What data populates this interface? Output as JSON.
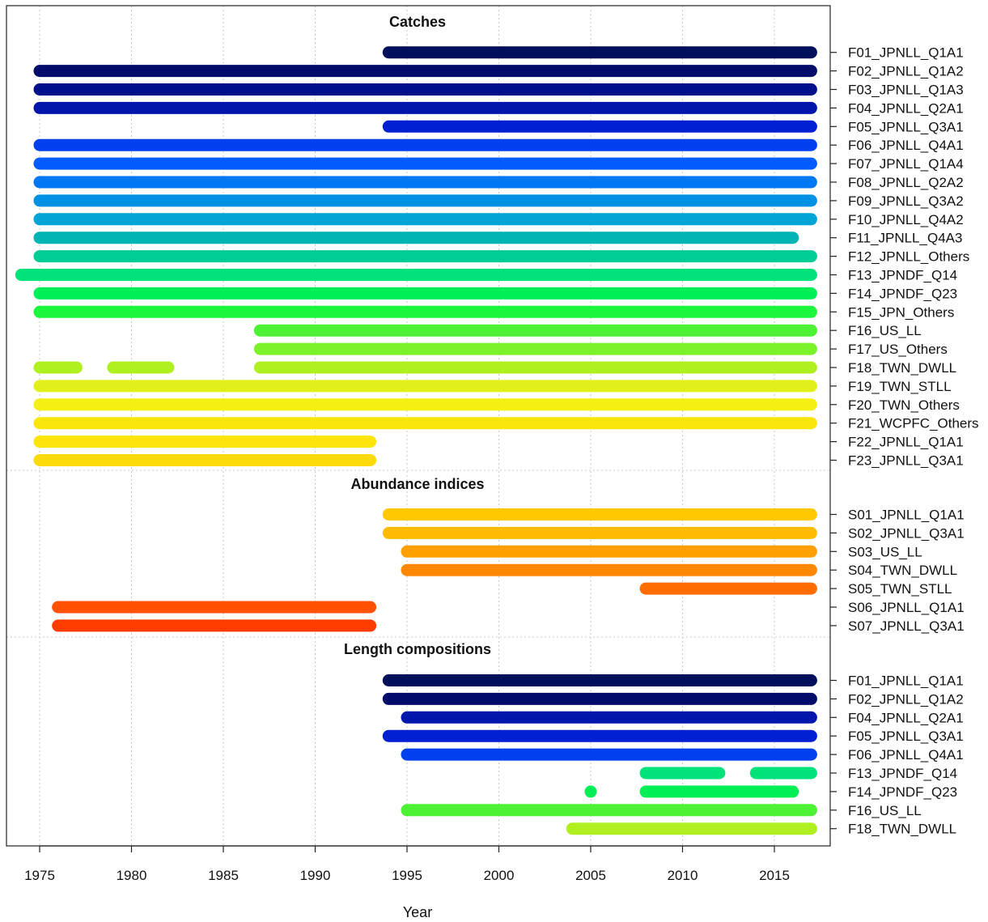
{
  "chart_data": {
    "type": "timeline",
    "xlabel": "Year",
    "x_ticks": [
      1975,
      1980,
      1985,
      1990,
      1995,
      2000,
      2005,
      2010,
      2015
    ],
    "xlim": [
      1973.2,
      2017.8
    ],
    "grid": true,
    "sections": [
      {
        "title": "Catches",
        "rows": [
          {
            "label": "F01_JPNLL_Q1A1",
            "color": "#000f5c",
            "segments": [
              [
                1994,
                2017
              ]
            ]
          },
          {
            "label": "F02_JPNLL_Q1A2",
            "color": "#000b6a",
            "segments": [
              [
                1975,
                2017
              ]
            ]
          },
          {
            "label": "F03_JPNLL_Q1A3",
            "color": "#00108a",
            "segments": [
              [
                1975,
                2017
              ]
            ]
          },
          {
            "label": "F04_JPNLL_Q2A1",
            "color": "#0016ad",
            "segments": [
              [
                1975,
                2017
              ]
            ]
          },
          {
            "label": "F05_JPNLL_Q3A1",
            "color": "#001fd2",
            "segments": [
              [
                1994,
                2017
              ]
            ]
          },
          {
            "label": "F06_JPNLL_Q4A1",
            "color": "#0040ef",
            "segments": [
              [
                1975,
                2017
              ]
            ]
          },
          {
            "label": "F07_JPNLL_Q1A4",
            "color": "#005cff",
            "segments": [
              [
                1975,
                2017
              ]
            ]
          },
          {
            "label": "F08_JPNLL_Q2A2",
            "color": "#0077f3",
            "segments": [
              [
                1975,
                2017
              ]
            ]
          },
          {
            "label": "F09_JPNLL_Q3A2",
            "color": "#0091e5",
            "segments": [
              [
                1975,
                2017
              ]
            ]
          },
          {
            "label": "F10_JPNLL_Q4A2",
            "color": "#00a5d6",
            "segments": [
              [
                1975,
                2017
              ]
            ]
          },
          {
            "label": "F11_JPNLL_Q4A3",
            "color": "#00b4b4",
            "segments": [
              [
                1975,
                2016
              ]
            ]
          },
          {
            "label": "F12_JPNLL_Others",
            "color": "#00cc96",
            "segments": [
              [
                1975,
                2017
              ]
            ]
          },
          {
            "label": "F13_JPNDF_Q14",
            "color": "#00e27a",
            "segments": [
              [
                1974,
                2017
              ]
            ]
          },
          {
            "label": "F14_JPNDF_Q23",
            "color": "#00ef56",
            "segments": [
              [
                1975,
                2017
              ]
            ]
          },
          {
            "label": "F15_JPN_Others",
            "color": "#1af73c",
            "segments": [
              [
                1975,
                2017
              ]
            ]
          },
          {
            "label": "F16_US_LL",
            "color": "#4cf233",
            "segments": [
              [
                1987,
                2017
              ]
            ]
          },
          {
            "label": "F17_US_Others",
            "color": "#7cf22a",
            "segments": [
              [
                1987,
                2017
              ]
            ]
          },
          {
            "label": "F18_TWN_DWLL",
            "color": "#b0f020",
            "segments": [
              [
                1975,
                1977
              ],
              [
                1979,
                1982
              ],
              [
                1987,
                2017
              ]
            ]
          },
          {
            "label": "F19_TWN_STLL",
            "color": "#e2f01a",
            "segments": [
              [
                1975,
                2017
              ]
            ]
          },
          {
            "label": "F20_TWN_Others",
            "color": "#f5f012",
            "segments": [
              [
                1975,
                2017
              ]
            ]
          },
          {
            "label": "F21_WCPFC_Others",
            "color": "#fbe60c",
            "segments": [
              [
                1975,
                2017
              ]
            ]
          },
          {
            "label": "F22_JPNLL_Q1A1",
            "color": "#fde40a",
            "segments": [
              [
                1975,
                1993
              ]
            ]
          },
          {
            "label": "F23_JPNLL_Q3A1",
            "color": "#fdda0a",
            "segments": [
              [
                1975,
                1993
              ]
            ]
          }
        ]
      },
      {
        "title": "Abundance indices",
        "rows": [
          {
            "label": "S01_JPNLL_Q1A1",
            "color": "#ffc800",
            "segments": [
              [
                1994,
                2017
              ]
            ]
          },
          {
            "label": "S02_JPNLL_Q3A1",
            "color": "#ffbb00",
            "segments": [
              [
                1994,
                2017
              ]
            ]
          },
          {
            "label": "S03_US_LL",
            "color": "#ffa000",
            "segments": [
              [
                1995,
                2017
              ]
            ]
          },
          {
            "label": "S04_TWN_DWLL",
            "color": "#ff8800",
            "segments": [
              [
                1995,
                2017
              ]
            ]
          },
          {
            "label": "S05_TWN_STLL",
            "color": "#ff6d00",
            "segments": [
              [
                2008,
                2017
              ]
            ]
          },
          {
            "label": "S06_JPNLL_Q1A1",
            "color": "#ff5200",
            "segments": [
              [
                1976,
                1993
              ]
            ]
          },
          {
            "label": "S07_JPNLL_Q3A1",
            "color": "#ff3c00",
            "segments": [
              [
                1976,
                1993
              ]
            ]
          }
        ]
      },
      {
        "title": "Length compositions",
        "rows": [
          {
            "label": "F01_JPNLL_Q1A1",
            "color": "#000f5c",
            "segments": [
              [
                1994,
                2017
              ]
            ]
          },
          {
            "label": "F02_JPNLL_Q1A2",
            "color": "#000b6a",
            "segments": [
              [
                1994,
                2017
              ]
            ]
          },
          {
            "label": "F04_JPNLL_Q2A1",
            "color": "#0016ad",
            "segments": [
              [
                1995,
                2017
              ]
            ]
          },
          {
            "label": "F05_JPNLL_Q3A1",
            "color": "#001fd2",
            "segments": [
              [
                1994,
                2017
              ]
            ]
          },
          {
            "label": "F06_JPNLL_Q4A1",
            "color": "#0040ef",
            "segments": [
              [
                1995,
                2017
              ]
            ]
          },
          {
            "label": "F13_JPNDF_Q14",
            "color": "#00e27a",
            "segments": [
              [
                2008,
                2012
              ],
              [
                2014,
                2017
              ]
            ]
          },
          {
            "label": "F14_JPNDF_Q23",
            "color": "#00ef56",
            "segments": [
              [
                2005,
                2005
              ],
              [
                2008,
                2016
              ]
            ]
          },
          {
            "label": "F16_US_LL",
            "color": "#4cf233",
            "segments": [
              [
                1995,
                2017
              ]
            ]
          },
          {
            "label": "F18_TWN_DWLL",
            "color": "#b0f020",
            "segments": [
              [
                2004,
                2017
              ]
            ]
          }
        ]
      }
    ]
  }
}
